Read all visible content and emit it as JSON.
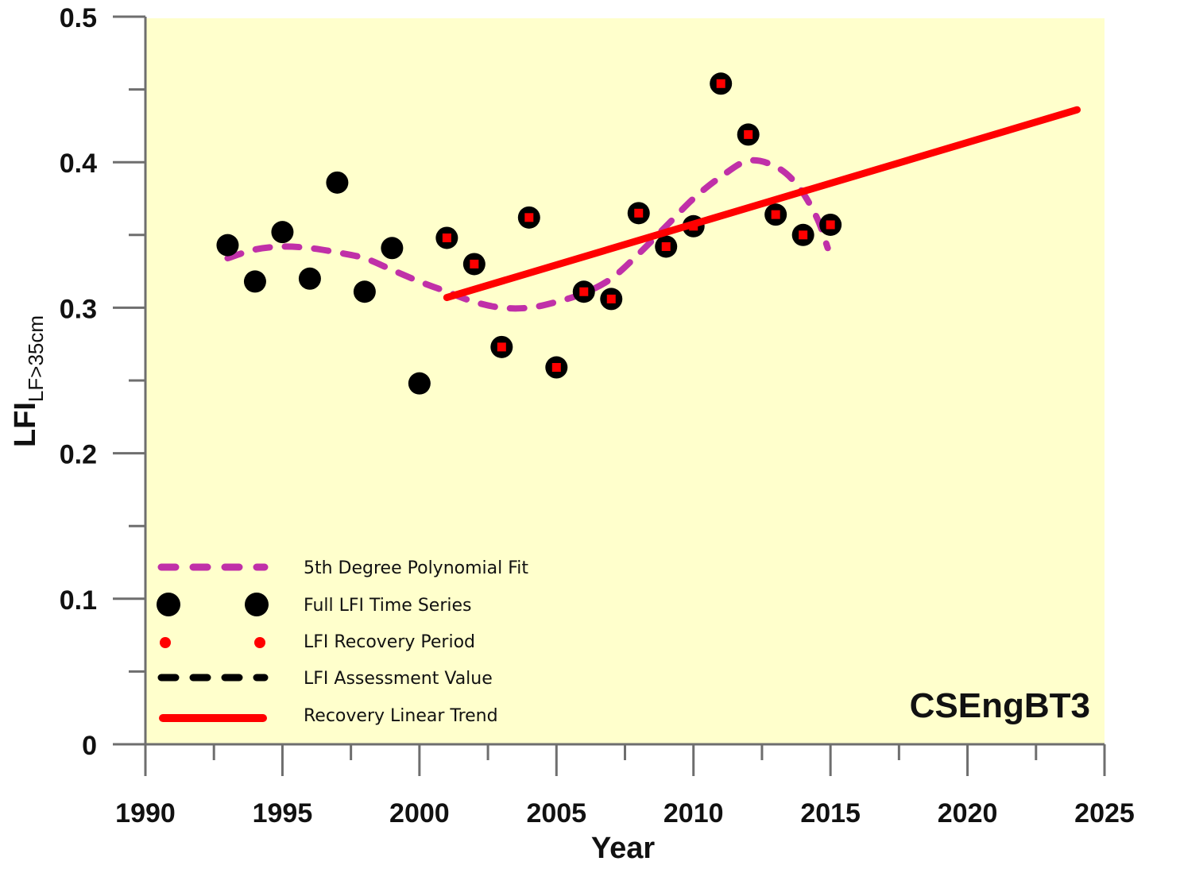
{
  "chart_data": {
    "type": "scatter",
    "title": "",
    "site_label": "CSEngBT3",
    "xlabel": "Year",
    "ylabel_main": "LFI",
    "ylabel_sub": "LF>35cm",
    "xlim": [
      1990,
      2025
    ],
    "ylim": [
      0,
      0.5
    ],
    "x_ticks": [
      1990,
      1995,
      2000,
      2005,
      2010,
      2015,
      2020,
      2025
    ],
    "x_tick_labels": [
      "1990",
      "1995",
      "2000",
      "2005",
      "2010",
      "2015",
      "2020",
      "2025"
    ],
    "x_minor_ticks": [
      1992.5,
      1997.5,
      2002.5,
      2007.5,
      2012.5,
      2017.5,
      2022.5
    ],
    "y_ticks": [
      0,
      0.1,
      0.2,
      0.3,
      0.4,
      0.5
    ],
    "y_tick_labels": [
      "0",
      "0.1",
      "0.2",
      "0.3",
      "0.4",
      "0.5"
    ],
    "y_minor_ticks": [
      0.05,
      0.15,
      0.25,
      0.35,
      0.45
    ],
    "grid": false,
    "background_color": "#FFFFCC",
    "legend_position": "bottom-left",
    "series": [
      {
        "name": "5th Degree Polynomial Fit",
        "kind": "dashed-line",
        "color": "#C030A8",
        "x": [
          1993,
          1994,
          1995,
          1996,
          1997,
          1998,
          1999,
          2000,
          2001,
          2002,
          2003,
          2004,
          2005,
          2006,
          2007,
          2008,
          2009,
          2010,
          2011,
          2012,
          2013,
          2013.8,
          2014.5,
          2014.9
        ],
        "y": [
          0.334,
          0.34,
          0.342,
          0.341,
          0.338,
          0.334,
          0.326,
          0.318,
          0.311,
          0.304,
          0.3,
          0.3,
          0.304,
          0.31,
          0.32,
          0.337,
          0.356,
          0.375,
          0.39,
          0.401,
          0.397,
          0.384,
          0.362,
          0.341
        ]
      },
      {
        "name": "Full LFI Time Series",
        "kind": "marker-large",
        "color": "#000000",
        "x": [
          1993,
          1994,
          1995,
          1996,
          1997,
          1998,
          1999,
          2000,
          2001,
          2002,
          2003,
          2004,
          2005,
          2006,
          2007,
          2008,
          2009,
          2010,
          2011,
          2012,
          2013,
          2014,
          2015
        ],
        "y": [
          0.343,
          0.318,
          0.352,
          0.32,
          0.386,
          0.311,
          0.341,
          0.248,
          0.348,
          0.33,
          0.273,
          0.362,
          0.259,
          0.311,
          0.306,
          0.365,
          0.342,
          0.356,
          0.454,
          0.419,
          0.364,
          0.35,
          0.357
        ]
      },
      {
        "name": "LFI Recovery Period",
        "kind": "marker-small",
        "color": "#FF0000",
        "x": [
          2001,
          2002,
          2003,
          2004,
          2005,
          2006,
          2007,
          2008,
          2009,
          2010,
          2011,
          2012,
          2013,
          2014,
          2015
        ],
        "y": [
          0.348,
          0.33,
          0.273,
          0.362,
          0.259,
          0.311,
          0.306,
          0.365,
          0.342,
          0.356,
          0.454,
          0.419,
          0.364,
          0.35,
          0.357
        ]
      },
      {
        "name": "LFI Assessment Value",
        "kind": "dashed-line",
        "color": "#000000",
        "x": [],
        "y": []
      },
      {
        "name": "Recovery Linear Trend",
        "kind": "solid-line",
        "color": "#FF0000",
        "x": [
          2001,
          2024
        ],
        "y": [
          0.307,
          0.436
        ]
      }
    ]
  }
}
